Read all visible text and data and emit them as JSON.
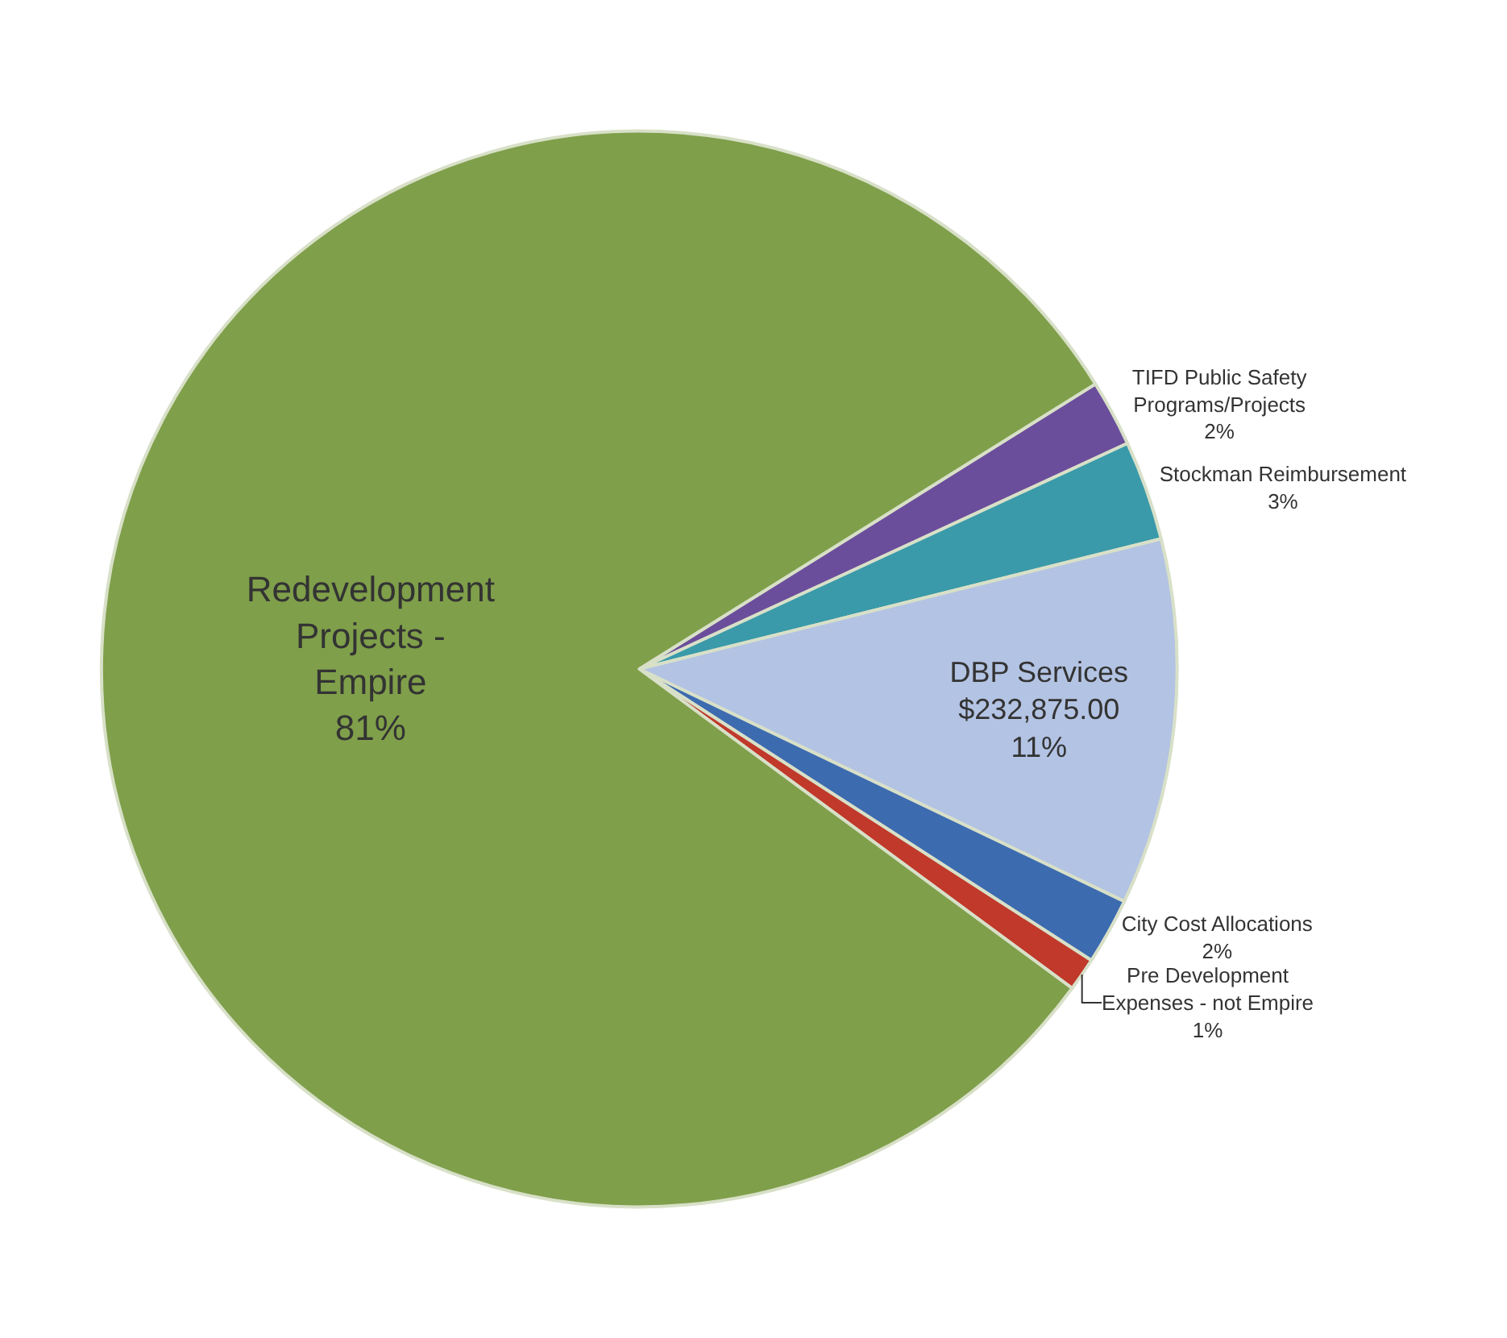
{
  "chart_data": {
    "type": "pie",
    "categories": [
      "TIFD Public Safety Programs/Projects",
      "Stockman Reimbursement",
      "DBP Services",
      "City Cost Allocations",
      "Pre Development Expenses - not Empire",
      "Redevelopment Projects - Empire"
    ],
    "values": [
      2,
      3,
      11,
      2,
      1,
      81
    ],
    "value_labels": [
      "2%",
      "3%",
      "$232,875.00\n11%",
      "2%",
      "1%",
      "81%"
    ],
    "colors": [
      "#6b4e9b",
      "#3a9aaa",
      "#b3c3e3",
      "#3d6bb0",
      "#c0392b",
      "#7f9f4a"
    ],
    "legend": false
  }
}
